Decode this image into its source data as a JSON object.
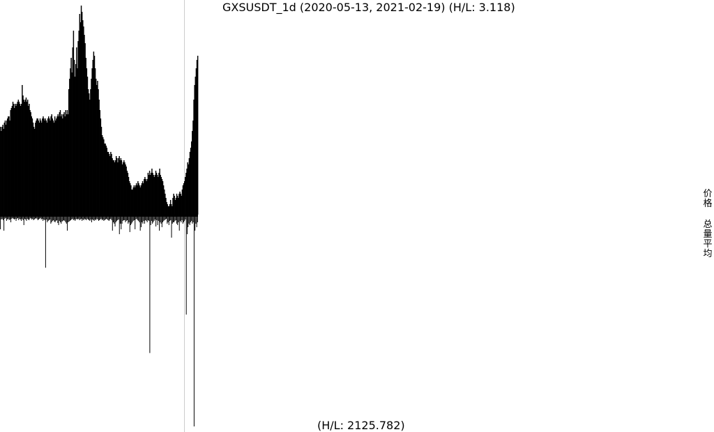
{
  "header": {
    "title": "GXSUSDT_1d (2020-05-13, 2021-02-19) (H/L: 3.118)"
  },
  "footer": {
    "hl_label": "(H/L: 2125.782)"
  },
  "side_labels": {
    "price": "价格",
    "volume_avg": "总量平均"
  },
  "colors": {
    "bars": "#000000",
    "divider": "#cccccc",
    "background": "#ffffff"
  },
  "chart_data": [
    {
      "type": "area",
      "series": [
        {
          "values": [
            0.42,
            0.4,
            0.42,
            0.43,
            0.41,
            0.44,
            0.45,
            0.43,
            0.45,
            0.46,
            0.47,
            0.47,
            0.45,
            0.5,
            0.51,
            0.52,
            0.54,
            0.53,
            0.51,
            0.53,
            0.52,
            0.53,
            0.54,
            0.55,
            0.54,
            0.53,
            0.52,
            0.53,
            0.62,
            0.57,
            0.55,
            0.54,
            0.55,
            0.56,
            0.54,
            0.55,
            0.52,
            0.53,
            0.5,
            0.49,
            0.47,
            0.46,
            0.44,
            0.42,
            0.41,
            0.44,
            0.45,
            0.46,
            0.46,
            0.45,
            0.44,
            0.46,
            0.45,
            0.44,
            0.46,
            0.47,
            0.46,
            0.45,
            0.46,
            0.45,
            0.44,
            0.46,
            0.47,
            0.46,
            0.45,
            0.47,
            0.48,
            0.46,
            0.45,
            0.44,
            0.47,
            0.45,
            0.46,
            0.47,
            0.48,
            0.47,
            0.49,
            0.5,
            0.47,
            0.48,
            0.46,
            0.48,
            0.49,
            0.47,
            0.5,
            0.48,
            0.5,
            0.48,
            0.6,
            0.65,
            0.7,
            0.75,
            0.68,
            0.8,
            0.88,
            0.74,
            0.66,
            0.72,
            0.8,
            0.7,
            0.83,
            0.88,
            0.96,
            0.92,
            1.0,
            0.97,
            0.93,
            0.9,
            0.86,
            0.82,
            0.75,
            0.7,
            0.66,
            0.6,
            0.58,
            0.55,
            0.6,
            0.65,
            0.7,
            0.74,
            0.78,
            0.76,
            0.7,
            0.65,
            0.62,
            0.64,
            0.6,
            0.55,
            0.5,
            0.46,
            0.42,
            0.38,
            0.37,
            0.36,
            0.34,
            0.34,
            0.33,
            0.32,
            0.3,
            0.3,
            0.29,
            0.28,
            0.3,
            0.29,
            0.27,
            0.26,
            0.26,
            0.25,
            0.26,
            0.28,
            0.27,
            0.25,
            0.27,
            0.28,
            0.26,
            0.27,
            0.26,
            0.24,
            0.25,
            0.26,
            0.25,
            0.24,
            0.23,
            0.21,
            0.2,
            0.18,
            0.16,
            0.15,
            0.14,
            0.12,
            0.12,
            0.13,
            0.14,
            0.13,
            0.14,
            0.15,
            0.14,
            0.16,
            0.15,
            0.14,
            0.13,
            0.14,
            0.15,
            0.16,
            0.15,
            0.17,
            0.18,
            0.17,
            0.16,
            0.17,
            0.2,
            0.19,
            0.21,
            0.19,
            0.2,
            0.22,
            0.2,
            0.19,
            0.18,
            0.19,
            0.21,
            0.2,
            0.19,
            0.18,
            0.2,
            0.22,
            0.19,
            0.18,
            0.17,
            0.16,
            0.14,
            0.12,
            0.1,
            0.08,
            0.06,
            0.05,
            0.04,
            0.04,
            0.05,
            0.07,
            0.05,
            0.04,
            0.08,
            0.1,
            0.09,
            0.07,
            0.08,
            0.1,
            0.09,
            0.08,
            0.1,
            0.11,
            0.1,
            0.09,
            0.12,
            0.14,
            0.15,
            0.16,
            0.18,
            0.2,
            0.22,
            0.25,
            0.24,
            0.27,
            0.3,
            0.32,
            0.35,
            0.4,
            0.45,
            0.55,
            0.62,
            0.66,
            0.7,
            0.74,
            0.76
          ]
        }
      ]
    },
    {
      "type": "bar",
      "series": [
        {
          "values": [
            18,
            4,
            3,
            5,
            20,
            3,
            2,
            6,
            4,
            3,
            5,
            4,
            8,
            3,
            2,
            3,
            4,
            3,
            6,
            3,
            2,
            5,
            3,
            4,
            6,
            3,
            5,
            12,
            3,
            4,
            6,
            3,
            4,
            5,
            3,
            2,
            4,
            3,
            5,
            4,
            3,
            2,
            3,
            5,
            4,
            3,
            2,
            4,
            3,
            6,
            4,
            5,
            73,
            4,
            8,
            6,
            5,
            4,
            10,
            8,
            6,
            5,
            7,
            8,
            6,
            5,
            9,
            12,
            6,
            8,
            10,
            7,
            6,
            5,
            6,
            8,
            10,
            20,
            8,
            7,
            6,
            5,
            4,
            3,
            5,
            4,
            6,
            4,
            3,
            4,
            3,
            5,
            4,
            3,
            6,
            4,
            5,
            3,
            4,
            5,
            3,
            4,
            5,
            6,
            4,
            8,
            4,
            5,
            6,
            4,
            5,
            3,
            4,
            6,
            5,
            4,
            3,
            5,
            4,
            6,
            5,
            4,
            3,
            4,
            5,
            6,
            4,
            3,
            5,
            20,
            8,
            10,
            14,
            8,
            6,
            5,
            4,
            25,
            10,
            18,
            10,
            6,
            5,
            5,
            8,
            6,
            5,
            10,
            8,
            22,
            12,
            10,
            8,
            6,
            5,
            18,
            4,
            3,
            5,
            6,
            8,
            20,
            15,
            8,
            10,
            6,
            10,
            5,
            6,
            8,
            5,
            6,
            195,
            12,
            6,
            10,
            8,
            6,
            4,
            14,
            5,
            12,
            6,
            20,
            8,
            10,
            15,
            8,
            6,
            5,
            4,
            3,
            10,
            8,
            12,
            6,
            5,
            30,
            10,
            8,
            8,
            6,
            5,
            10,
            12,
            8,
            20,
            6,
            8,
            5,
            10,
            8,
            6,
            4,
            140,
            25,
            15,
            10,
            12,
            8,
            6,
            10,
            8,
            300,
            20,
            10,
            15,
            8
          ]
        }
      ]
    }
  ]
}
